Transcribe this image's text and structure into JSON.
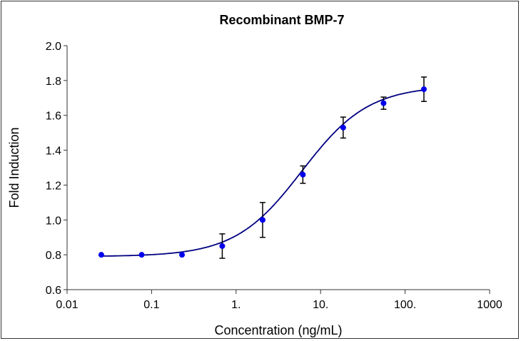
{
  "chart_data": {
    "type": "scatter",
    "title": "Recombinant BMP-7",
    "xlabel": "Concentration (ng/mL)",
    "ylabel": "Fold Induction",
    "xscale": "log",
    "xlim": [
      0.01,
      1000
    ],
    "ylim": [
      0.6,
      2.0
    ],
    "xticks": [
      0.01,
      0.1,
      1,
      10,
      100,
      1000
    ],
    "xtick_labels": [
      "0.01",
      "0.1",
      "1.",
      "10.",
      "100.",
      "1000"
    ],
    "yticks": [
      0.6,
      0.8,
      1.0,
      1.2,
      1.4,
      1.6,
      1.8,
      2.0
    ],
    "ytick_labels": [
      "0.6",
      "0.8",
      "1.0",
      "1.2",
      "1.4",
      "1.6",
      "1.8",
      "2.0"
    ],
    "grid": false,
    "points": {
      "x": [
        0.0254,
        0.0763,
        0.229,
        0.686,
        2.06,
        6.17,
        18.5,
        55.6,
        167
      ],
      "y": [
        0.8,
        0.8,
        0.8,
        0.85,
        1.0,
        1.26,
        1.53,
        1.67,
        1.75
      ],
      "error": [
        0,
        0,
        0,
        0.07,
        0.1,
        0.05,
        0.06,
        0.035,
        0.07
      ]
    },
    "fit": {
      "model": "4PL",
      "bottom": 0.79,
      "top": 1.77,
      "ec50": 6.0,
      "hill": 1.1
    },
    "colors": {
      "points": "#0000ee",
      "fit_line": "#000080",
      "error_bars": "#000000"
    }
  }
}
